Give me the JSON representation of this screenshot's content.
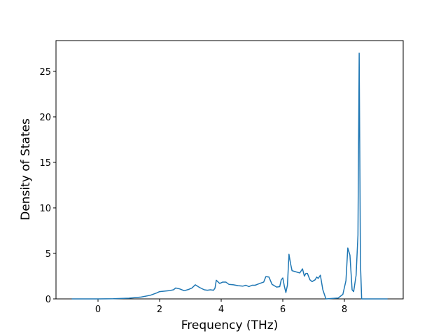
{
  "chart_data": {
    "type": "line",
    "xlabel": "Frequency (THz)",
    "ylabel": "Density of States",
    "x": [
      -0.85,
      0,
      0.5,
      1,
      1.4,
      1.7,
      1.9,
      2.0,
      2.3,
      2.45,
      2.52,
      2.65,
      2.8,
      2.95,
      3.05,
      3.16,
      3.3,
      3.45,
      3.55,
      3.65,
      3.75,
      3.8,
      3.84,
      3.95,
      4.05,
      4.15,
      4.25,
      4.4,
      4.55,
      4.7,
      4.8,
      4.9,
      5.0,
      5.1,
      5.25,
      5.38,
      5.45,
      5.55,
      5.65,
      5.8,
      5.9,
      5.95,
      6.0,
      6.05,
      6.1,
      6.15,
      6.2,
      6.25,
      6.3,
      6.4,
      6.55,
      6.64,
      6.7,
      6.75,
      6.8,
      6.88,
      6.95,
      7.05,
      7.1,
      7.15,
      7.22,
      7.3,
      7.4,
      7.8,
      7.95,
      8.05,
      8.11,
      8.18,
      8.25,
      8.3,
      8.38,
      8.44,
      8.48,
      8.52,
      8.56,
      9.4
    ],
    "series": [
      {
        "name": "DOS",
        "color": "#1f77b4",
        "values": [
          0,
          0,
          0.02,
          0.08,
          0.2,
          0.4,
          0.65,
          0.8,
          0.9,
          1.0,
          1.2,
          1.1,
          0.9,
          1.05,
          1.2,
          1.55,
          1.25,
          1.0,
          0.95,
          1.0,
          0.95,
          1.2,
          2.05,
          1.7,
          1.85,
          1.85,
          1.6,
          1.55,
          1.45,
          1.4,
          1.5,
          1.35,
          1.5,
          1.5,
          1.7,
          1.85,
          2.45,
          2.4,
          1.6,
          1.3,
          1.35,
          2.1,
          2.3,
          1.4,
          0.7,
          1.5,
          4.9,
          3.9,
          3.1,
          3.0,
          2.85,
          3.3,
          2.5,
          2.8,
          2.8,
          2.1,
          1.9,
          2.1,
          2.4,
          2.25,
          2.6,
          1.0,
          0,
          0.1,
          0.5,
          2.0,
          5.6,
          4.8,
          1.0,
          0.8,
          2.6,
          7,
          27,
          4,
          0,
          0
        ]
      }
    ],
    "xlim": [
      -1.364,
      9.909
    ],
    "ylim": [
      0,
      28.38
    ],
    "xticks": [
      0,
      2,
      4,
      6,
      8
    ],
    "yticks": [
      0,
      5,
      10,
      15,
      20,
      25
    ]
  }
}
